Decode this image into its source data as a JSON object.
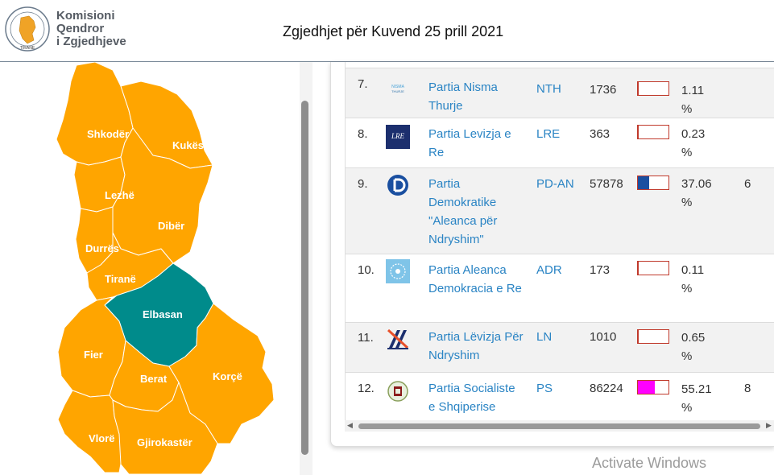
{
  "header": {
    "org_line1": "Komisioni",
    "org_line2": "Qendror",
    "org_line3": "i Zgjedhjeve",
    "logo_text": "TIRANE",
    "title": "Zgjedhjet për Kuvend 25 prill 2021"
  },
  "colors": {
    "region_default": "#FFA500",
    "region_selected": "#008B8B",
    "link": "#2a84c4",
    "bar_border": "#c0392b"
  },
  "map": {
    "regions": [
      {
        "name": "Shkodër",
        "selected": false
      },
      {
        "name": "Kukës",
        "selected": false
      },
      {
        "name": "Lezhë",
        "selected": false
      },
      {
        "name": "Dibër",
        "selected": false
      },
      {
        "name": "Durrës",
        "selected": false
      },
      {
        "name": "Tiranë",
        "selected": false
      },
      {
        "name": "Elbasan",
        "selected": true
      },
      {
        "name": "Fier",
        "selected": false
      },
      {
        "name": "Berat",
        "selected": false
      },
      {
        "name": "Korçë",
        "selected": false
      },
      {
        "name": "Vlorë",
        "selected": false
      },
      {
        "name": "Gjirokastër",
        "selected": false
      }
    ]
  },
  "table": {
    "rows": [
      {
        "num": "7.",
        "logo": "nisma-thurje-logo",
        "name": "Partia Nisma Thurje",
        "abbr": "NTH",
        "votes": "1736",
        "pct_line1": "1.11",
        "pct_line2": "%",
        "share": 1.11,
        "bar_color": "#c0392b",
        "seats": ""
      },
      {
        "num": "8.",
        "logo": "lre-logo",
        "name": "Partia Levizja e Re",
        "abbr": "LRE",
        "votes": "363",
        "pct_line1": "0.23",
        "pct_line2": "%",
        "share": 0.23,
        "bar_color": "#c0392b",
        "seats": ""
      },
      {
        "num": "9.",
        "logo": "pd-logo",
        "name": "Partia Demokratike \"Aleanca për Ndryshim\"",
        "abbr": "PD-AN",
        "votes": "57878",
        "pct_line1": "37.06",
        "pct_line2": "%",
        "share": 37.06,
        "bar_color": "#1a4fa0",
        "seats": "6"
      },
      {
        "num": "10.",
        "logo": "adr-logo",
        "name": "Partia Aleanca Demokracia e Re",
        "abbr": "ADR",
        "votes": "173",
        "pct_line1": "0.11",
        "pct_line2": "%",
        "share": 0.11,
        "bar_color": "#c0392b",
        "seats": ""
      },
      {
        "num": "11.",
        "logo": "ln-logo",
        "name": "Partia Lëvizja Për Ndryshim",
        "abbr": "LN",
        "votes": "1010",
        "pct_line1": "0.65",
        "pct_line2": "%",
        "share": 0.65,
        "bar_color": "#c0392b",
        "seats": ""
      },
      {
        "num": "12.",
        "logo": "ps-logo",
        "name": "Partia Socialiste e Shqiperise",
        "abbr": "PS",
        "votes": "86224",
        "pct_line1": "55.21",
        "pct_line2": "%",
        "share": 55.21,
        "bar_color": "#ff00ff",
        "seats": "8"
      }
    ]
  },
  "watermark": "Activate Windows"
}
